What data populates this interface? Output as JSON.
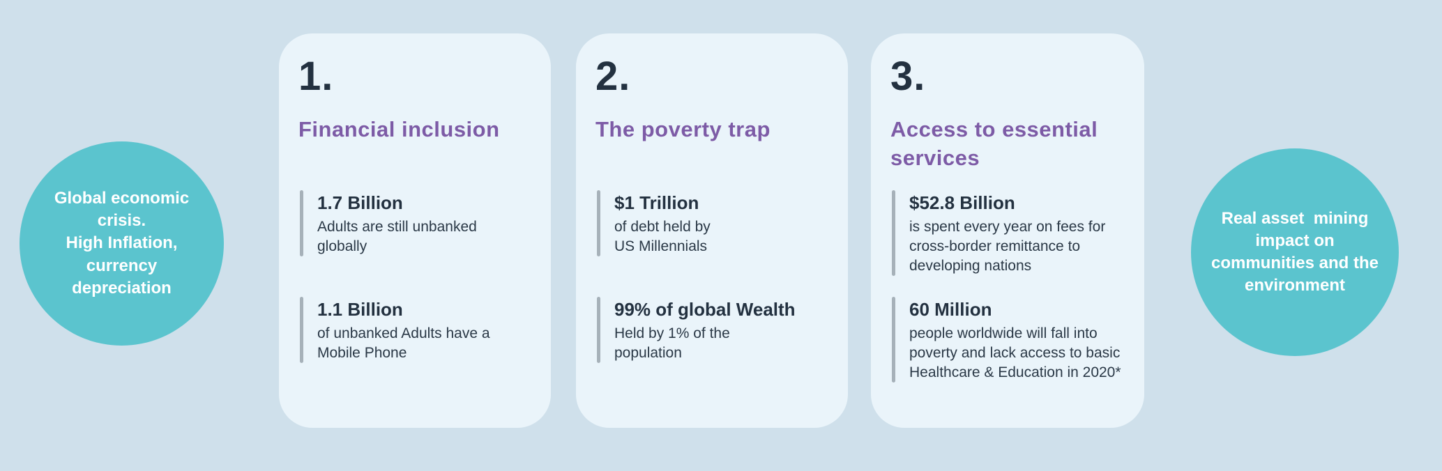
{
  "colors": {
    "background": "#CFE0EB",
    "card_background": "#EAF4FA",
    "circle_fill": "#5BC4CE",
    "circle_text": "#FFFFFF",
    "heading_purple": "#7D5BA6",
    "text_dark": "#233140",
    "accent_bar_grey": "#A6B1B9"
  },
  "left_circle": {
    "text": "Global economic\ncrisis.\nHigh Inflation,\ncurrency\ndepreciation"
  },
  "right_circle": {
    "text": "Real asset  mining\nimpact on\ncommunities and the\nenvironment"
  },
  "cards": [
    {
      "number": "1.",
      "title": "Financial inclusion",
      "stats": [
        {
          "value": "1.7 Billion",
          "description": "Adults are still unbanked\nglobally"
        },
        {
          "value": "1.1 Billion",
          "description": "of unbanked Adults have a\nMobile Phone"
        }
      ]
    },
    {
      "number": "2.",
      "title": "The poverty trap",
      "stats": [
        {
          "value": "$1 Trillion",
          "description": "of debt held by\nUS Millennials"
        },
        {
          "value": "99% of global Wealth",
          "description": "Held by 1% of the\npopulation"
        }
      ]
    },
    {
      "number": "3.",
      "title": "Access to essential\nservices",
      "stats": [
        {
          "value": "$52.8 Billion",
          "description": "is spent every year on fees for\ncross-border remittance to\ndeveloping nations"
        },
        {
          "value": "60 Million",
          "description": "people worldwide will fall into\npoverty and lack access to basic\nHealthcare & Education in 2020*"
        }
      ]
    }
  ]
}
